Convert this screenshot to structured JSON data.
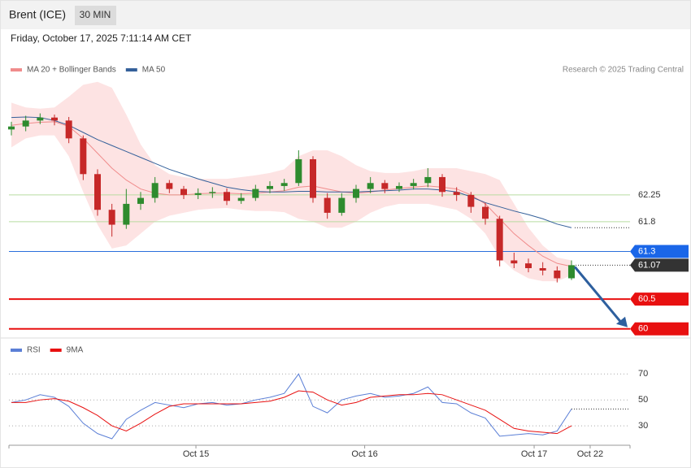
{
  "chart_data": {
    "type": "candlestick",
    "title": "Brent (ICE)",
    "timeframe": "30 MIN",
    "subtitle": "Friday, October 17, 2025 7:11:14 AM CET",
    "source": "Research © 2025 Trading Central",
    "up_color": "#2e8b2e",
    "down_color": "#c62828",
    "open": [
      63.35,
      63.4,
      63.5,
      63.55,
      63.5,
      63.2,
      62.6,
      62.0,
      61.75,
      62.1,
      62.2,
      62.45,
      62.35,
      62.25,
      62.28,
      62.3,
      62.15,
      62.2,
      62.35,
      62.4,
      62.45,
      62.85,
      62.2,
      61.95,
      62.2,
      62.35,
      62.45,
      62.35,
      62.4,
      62.45,
      62.55,
      62.3,
      62.25,
      62.05,
      61.85,
      61.15,
      61.1,
      61.02,
      60.98,
      60.85
    ],
    "high": [
      63.48,
      63.58,
      63.62,
      63.6,
      63.56,
      63.25,
      62.68,
      62.1,
      62.35,
      62.3,
      62.55,
      62.5,
      62.4,
      62.36,
      62.38,
      62.36,
      62.28,
      62.42,
      62.48,
      62.52,
      63.0,
      62.9,
      62.28,
      62.28,
      62.42,
      62.55,
      62.5,
      62.46,
      62.52,
      62.7,
      62.6,
      62.38,
      62.3,
      62.12,
      61.9,
      61.28,
      61.18,
      61.12,
      61.05,
      61.15
    ],
    "low": [
      63.25,
      63.32,
      63.44,
      63.42,
      63.12,
      62.5,
      61.9,
      61.55,
      61.68,
      62.0,
      62.12,
      62.28,
      62.18,
      62.18,
      62.2,
      62.08,
      62.1,
      62.15,
      62.28,
      62.32,
      62.4,
      62.12,
      61.85,
      61.9,
      62.12,
      62.28,
      62.28,
      62.3,
      62.34,
      62.38,
      62.22,
      62.15,
      61.95,
      61.75,
      61.05,
      61.02,
      60.95,
      60.9,
      60.78,
      60.82
    ],
    "close": [
      63.4,
      63.5,
      63.55,
      63.5,
      63.2,
      62.6,
      62.0,
      61.75,
      62.1,
      62.2,
      62.45,
      62.35,
      62.25,
      62.28,
      62.3,
      62.15,
      62.2,
      62.35,
      62.4,
      62.45,
      62.85,
      62.2,
      61.95,
      62.2,
      62.35,
      62.45,
      62.35,
      62.4,
      62.45,
      62.55,
      62.3,
      62.25,
      62.05,
      61.85,
      61.15,
      61.1,
      61.02,
      60.98,
      60.85,
      61.07
    ],
    "overlays": [
      {
        "name": "MA 20 + Bollinger Bands",
        "color": "#f08c8c",
        "band_color": "#fde3e3",
        "values": [
          63.42,
          63.45,
          63.47,
          63.48,
          63.4,
          63.2,
          62.95,
          62.7,
          62.5,
          62.35,
          62.28,
          62.25,
          62.25,
          62.27,
          62.28,
          62.28,
          62.27,
          62.28,
          62.3,
          62.32,
          62.38,
          62.4,
          62.35,
          62.3,
          62.28,
          62.3,
          62.33,
          62.36,
          62.38,
          62.4,
          62.38,
          62.35,
          62.25,
          62.1,
          61.85,
          61.6,
          61.4,
          61.22,
          61.1,
          61.05
        ],
        "upper": [
          63.8,
          63.72,
          63.7,
          63.72,
          63.9,
          64.1,
          64.15,
          64.05,
          63.6,
          63.1,
          62.75,
          62.6,
          62.55,
          62.52,
          62.52,
          62.52,
          62.55,
          62.58,
          62.62,
          62.68,
          62.9,
          63.0,
          63.0,
          62.9,
          62.75,
          62.65,
          62.62,
          62.62,
          62.65,
          62.7,
          62.7,
          62.7,
          62.65,
          62.6,
          62.5,
          62.1,
          61.7,
          61.4,
          61.2,
          61.15
        ],
        "lower": [
          63.05,
          63.2,
          63.25,
          63.25,
          62.9,
          62.3,
          61.75,
          61.35,
          61.4,
          61.6,
          61.8,
          61.9,
          61.95,
          62.0,
          62.02,
          62.03,
          62.0,
          61.98,
          61.98,
          61.96,
          61.85,
          61.8,
          61.7,
          61.7,
          61.8,
          61.95,
          62.05,
          62.1,
          62.1,
          62.1,
          62.05,
          62.0,
          61.85,
          61.6,
          61.2,
          60.98,
          60.85,
          60.8,
          60.8,
          60.9
        ]
      },
      {
        "name": "MA 50",
        "color": "#34609a",
        "values": [
          63.55,
          63.56,
          63.55,
          63.5,
          63.42,
          63.3,
          63.18,
          63.08,
          62.98,
          62.88,
          62.78,
          62.68,
          62.6,
          62.52,
          62.45,
          62.38,
          62.34,
          62.31,
          62.3,
          62.3,
          62.31,
          62.31,
          62.3,
          62.3,
          62.3,
          62.31,
          62.32,
          62.33,
          62.35,
          62.35,
          62.33,
          62.3,
          62.22,
          62.12,
          62.05,
          61.98,
          61.92,
          61.85,
          61.76,
          61.7
        ]
      }
    ],
    "levels": [
      {
        "value": 62.25,
        "color": "#b8dca0"
      },
      {
        "value": 61.8,
        "color": "#b8dca0"
      },
      {
        "value": 61.3,
        "color": "#2a6fdb"
      },
      {
        "value": 60.5,
        "color": "#e81010"
      },
      {
        "value": 60,
        "color": "#e81010"
      }
    ],
    "last_price": 61.07,
    "xlim": [
      0,
      39
    ],
    "ylim": [
      59.86,
      64.16
    ],
    "xticks": [
      {
        "value": 12.85,
        "label": "Oct 15"
      },
      {
        "value": 24.6,
        "label": "Oct 16"
      },
      {
        "value": 36.4,
        "label": "Oct 17"
      },
      {
        "value": 40.3,
        "label": "Oct 22"
      }
    ],
    "rsi": {
      "ylim": [
        15,
        89
      ],
      "yticks": [
        30,
        50,
        70
      ],
      "series": [
        {
          "name": "RSI",
          "color": "#5b7fd6",
          "values": [
            48,
            50,
            54,
            52,
            45,
            32,
            24,
            20,
            35,
            42,
            48,
            46,
            44,
            47,
            48,
            46,
            47,
            50,
            52,
            55,
            70,
            45,
            40,
            50,
            53,
            55,
            52,
            53,
            55,
            60,
            48,
            47,
            40,
            36,
            22,
            23,
            24,
            23,
            26,
            43
          ]
        },
        {
          "name": "9MA",
          "color": "#e81010",
          "values": [
            48,
            48,
            50,
            51,
            49,
            44,
            38,
            30,
            26,
            32,
            39,
            45,
            47,
            47,
            47,
            47,
            47,
            48,
            49,
            52,
            57,
            56,
            50,
            46,
            48,
            52,
            53,
            54,
            54,
            55,
            54,
            50,
            46,
            42,
            35,
            28,
            26,
            25,
            24,
            30
          ]
        }
      ]
    }
  }
}
